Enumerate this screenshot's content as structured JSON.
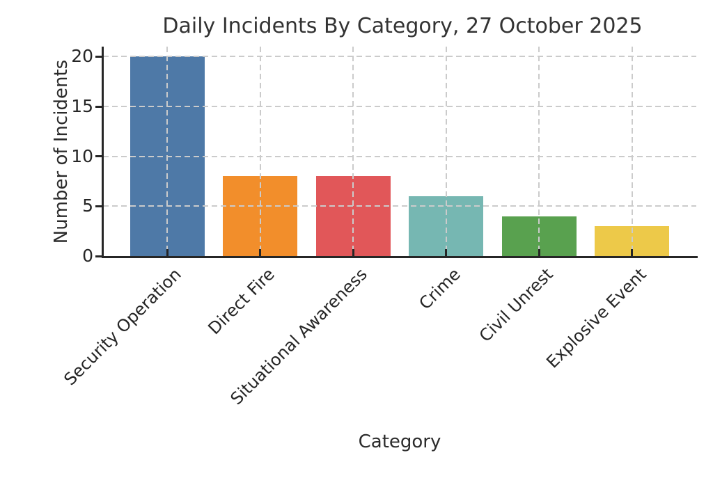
{
  "chart_data": {
    "type": "bar",
    "title": "Daily Incidents By Category, 27 October 2025",
    "xlabel": "Category",
    "ylabel": "Number of Incidents",
    "categories": [
      "Security Operation",
      "Direct Fire",
      "Situational Awareness",
      "Crime",
      "Civil Unrest",
      "Explosive Event"
    ],
    "values": [
      20,
      8,
      8,
      6,
      4,
      3
    ],
    "bar_colors": [
      "#4E79A7",
      "#F28E2B",
      "#E15759",
      "#76B7B2",
      "#59A14F",
      "#EDC949"
    ],
    "yticks": [
      0,
      5,
      10,
      15,
      20
    ],
    "ylim": [
      0,
      21
    ],
    "grid": "dashed both-axes over bars",
    "grid_color": "#cbcbcb",
    "axis_color": "#262626",
    "background": "#ffffff",
    "legend": "none",
    "xtick_rotation_deg": 45
  }
}
